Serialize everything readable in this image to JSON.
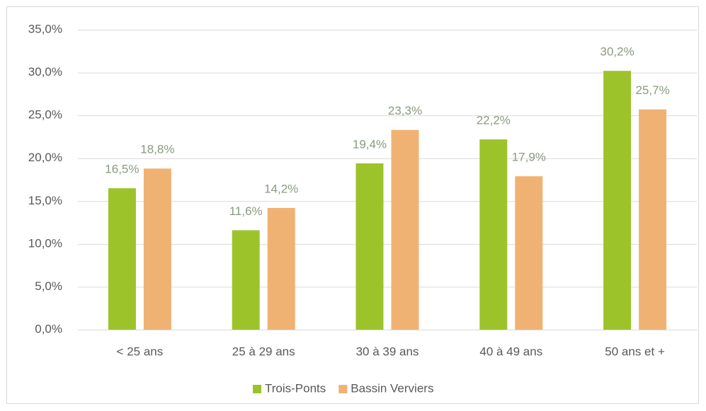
{
  "chart_data": {
    "type": "bar",
    "categories": [
      "< 25 ans",
      "25 à 29 ans",
      "30 à 39 ans",
      "40 à 49 ans",
      "50 ans et +"
    ],
    "series": [
      {
        "name": "Trois-Ponts",
        "color": "#9dc32b",
        "values": [
          16.5,
          11.6,
          19.4,
          22.2,
          30.2
        ],
        "value_labels": [
          "16,5%",
          "11,6%",
          "19,4%",
          "22,2%",
          "30,2%"
        ]
      },
      {
        "name": "Bassin Verviers",
        "color": "#f0b272",
        "values": [
          18.8,
          14.2,
          23.3,
          17.9,
          25.7
        ],
        "value_labels": [
          "18,8%",
          "14,2%",
          "23,3%",
          "17,9%",
          "25,7%"
        ]
      }
    ],
    "ylim": [
      0,
      35
    ],
    "yticks": [
      {
        "value": 0,
        "label": "0,0%"
      },
      {
        "value": 5,
        "label": "5,0%"
      },
      {
        "value": 10,
        "label": "10,0%"
      },
      {
        "value": 15,
        "label": "15,0%"
      },
      {
        "value": 20,
        "label": "20,0%"
      },
      {
        "value": 25,
        "label": "25,0%"
      },
      {
        "value": 30,
        "label": "30,0%"
      },
      {
        "value": 35,
        "label": "35,0%"
      }
    ],
    "grid": true,
    "legend": "bottom"
  }
}
